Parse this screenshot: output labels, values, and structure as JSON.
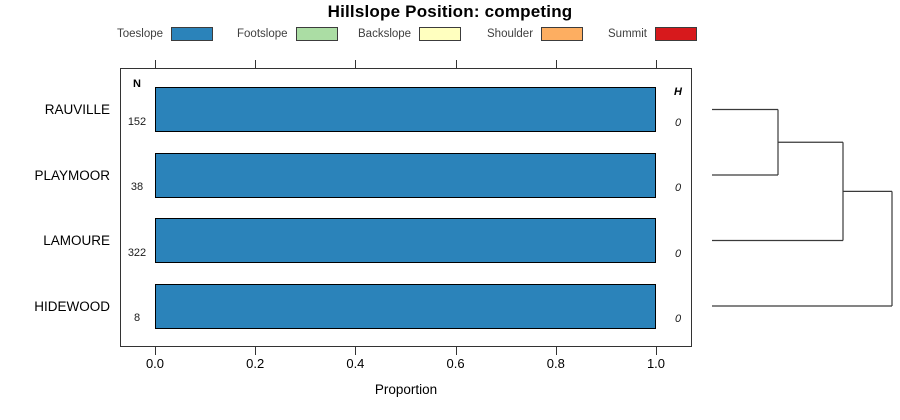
{
  "chart_data": {
    "type": "bar",
    "orientation": "horizontal",
    "stacked": true,
    "title": "Hillslope Position: competing",
    "xlabel": "Proportion",
    "xlim": [
      0,
      1.04
    ],
    "xticks": [
      0,
      0.2,
      0.4,
      0.6,
      0.8,
      1.0
    ],
    "xtick_labels": [
      "0.0",
      "0.2",
      "0.4",
      "0.6",
      "0.8",
      "1.0"
    ],
    "grid": false,
    "legend_position": "top",
    "categories": [
      "RAUVILLE",
      "PLAYMOOR",
      "LAMOURE",
      "HIDEWOOD"
    ],
    "series": [
      {
        "name": "Toeslope",
        "color": "#2B83BA",
        "values": [
          1.0,
          1.0,
          1.0,
          1.0
        ]
      },
      {
        "name": "Footslope",
        "color": "#ABDDA4",
        "values": [
          0,
          0,
          0,
          0
        ]
      },
      {
        "name": "Backslope",
        "color": "#FFFFBF",
        "values": [
          0,
          0,
          0,
          0
        ]
      },
      {
        "name": "Shoulder",
        "color": "#FDAE61",
        "values": [
          0,
          0,
          0,
          0
        ]
      },
      {
        "name": "Summit",
        "color": "#D7191C",
        "values": [
          0,
          0,
          0,
          0
        ]
      }
    ],
    "col_headers": {
      "n": "N",
      "h": "H"
    },
    "n_counts": [
      152,
      38,
      322,
      8
    ],
    "h_values": [
      "0",
      "0",
      "0",
      "0"
    ],
    "dendrogram": {
      "axis_side": "right",
      "leaf_order": [
        "RAUVILLE",
        "PLAYMOOR",
        "LAMOURE",
        "HIDEWOOD"
      ],
      "merges": [
        {
          "join": [
            "RAUVILLE",
            "PLAYMOOR"
          ]
        },
        {
          "join": [
            "RAUVILLE+PLAYMOOR",
            "LAMOURE"
          ]
        },
        {
          "join": [
            "RAUVILLE+PLAYMOOR+LAMOURE",
            "HIDEWOOD"
          ]
        }
      ]
    }
  }
}
